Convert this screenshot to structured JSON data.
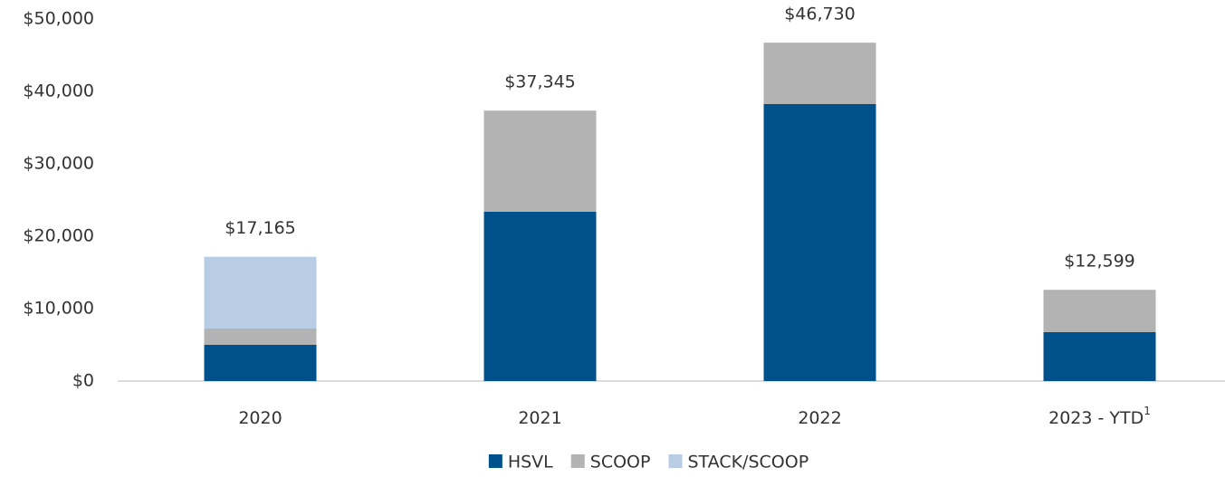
{
  "chart_data": {
    "type": "stacked_bar",
    "categories": [
      "2020",
      "2021",
      "2022",
      "2023 - YTD"
    ],
    "category_footnotes": [
      null,
      null,
      null,
      "1"
    ],
    "series": [
      {
        "name": "HSVL",
        "color": "#00508c",
        "values": [
          5000,
          23400,
          38250,
          6750
        ]
      },
      {
        "name": "SCOOP",
        "color": "#b3b3b3",
        "values": [
          2250,
          13945,
          8480,
          5849
        ]
      },
      {
        "name": "STACK/SCOOP",
        "color": "#b8cde4",
        "values": [
          9915,
          0,
          0,
          0
        ]
      }
    ],
    "totals": [
      17165,
      37345,
      46730,
      12599
    ],
    "total_labels": [
      "$17,165",
      "$37,345",
      "$46,730",
      "$12,599"
    ],
    "ylim": [
      0,
      50000
    ],
    "yticks": [
      {
        "value": 0,
        "label": "$0"
      },
      {
        "value": 10000,
        "label": "$10,000"
      },
      {
        "value": 20000,
        "label": "$20,000"
      },
      {
        "value": 30000,
        "label": "$30,000"
      },
      {
        "value": 40000,
        "label": "$40,000"
      },
      {
        "value": 50000,
        "label": "$50,000"
      }
    ],
    "grid": false,
    "legend": "bottom"
  }
}
